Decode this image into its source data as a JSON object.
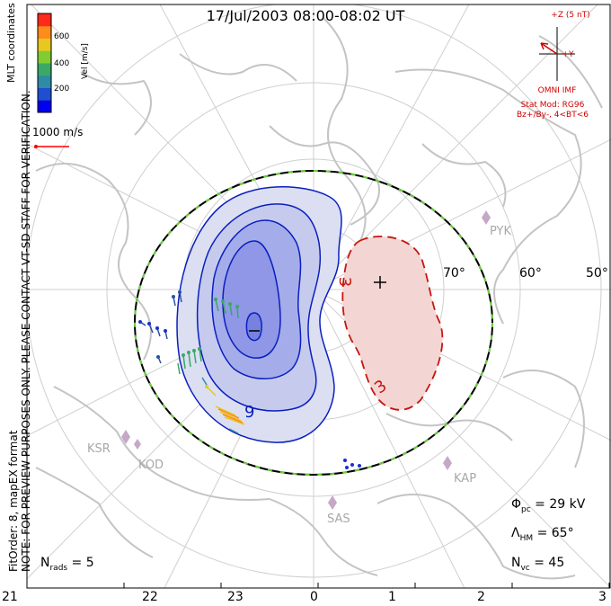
{
  "title": "17/Jul/2003 08:00-08:02 UT",
  "side_notes": {
    "coordinates": "MLT coordinates",
    "preview": "NOTE: FOR PREVIEW PURPOSES ONLY. PLEASE CONTACT VT-SD STAFF FOR VERIFICATION.",
    "fit": "FitOrder: 8, mapEX format"
  },
  "colorbar": {
    "title": "Vel [m/s]",
    "ticks": [
      "600",
      "400",
      "200"
    ],
    "colors": [
      "#0000ee",
      "#1e4fd0",
      "#2f8aa6",
      "#3aa866",
      "#7fcc33",
      "#e6c81e",
      "#ff8c1a",
      "#ff2a1a"
    ]
  },
  "reference_vector": {
    "label": "1000 m/s",
    "color": "#ff0000"
  },
  "imf": {
    "bz_label": "+Z (5 nT)",
    "by_label": "+Y",
    "source": "OMNI IMF",
    "model": "Stat Mod: RG96",
    "condition": "Bz+/By-, 4<BT<6"
  },
  "latitude_labels": [
    "70°",
    "60°",
    "50°"
  ],
  "stations": [
    "PYK",
    "KSR",
    "KOD",
    "SAS",
    "KAP"
  ],
  "contour_labels": {
    "negative": "9",
    "positive": "3"
  },
  "stats": {
    "phi_pc": "29 kV",
    "lambda_hm": "65°",
    "n_vc": "45",
    "n_rads": "5"
  },
  "mlt_ticks": [
    "21",
    "22",
    "23",
    "0",
    "1",
    "2",
    "3"
  ],
  "colors": {
    "negative_cell": "#0a1fbf",
    "positive_cell": "#c8150f",
    "boundary": "#000000",
    "boundary_dash": "#6ad039",
    "coastline": "#c4c4c4",
    "grid": "#cfcfcf"
  }
}
